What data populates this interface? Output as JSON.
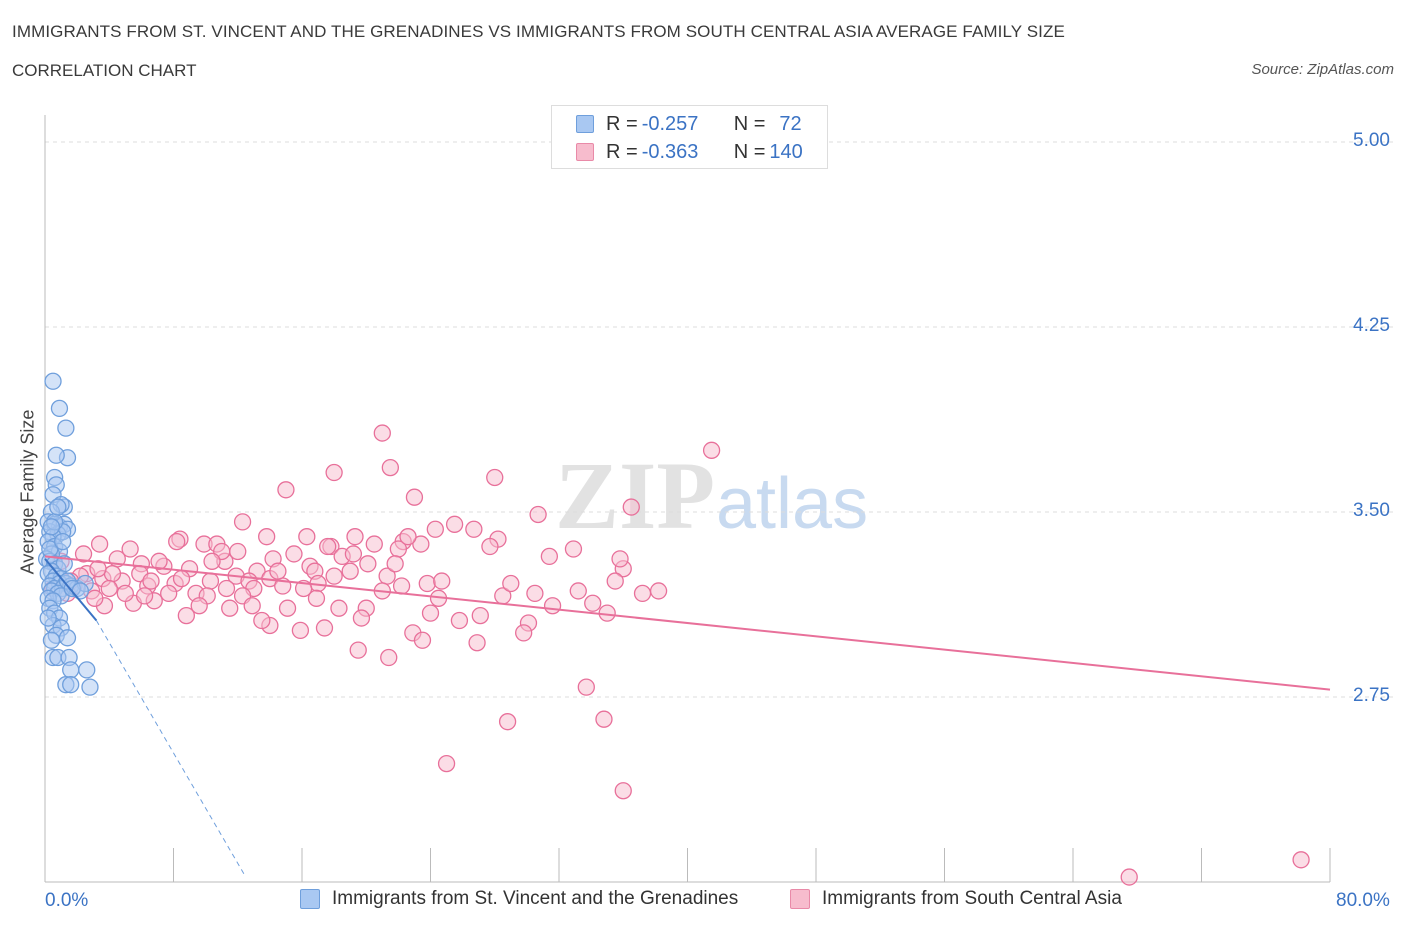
{
  "header": {
    "title": "IMMIGRANTS FROM ST. VINCENT AND THE GRENADINES VS IMMIGRANTS FROM SOUTH CENTRAL ASIA AVERAGE FAMILY SIZE",
    "subtitle": "CORRELATION CHART",
    "source": "Source: ZipAtlas.com"
  },
  "legend": {
    "rows": [
      {
        "r_label": "R = ",
        "r_value": "-0.257",
        "n_label": "N = ",
        "n_value": "72",
        "color": "#a9c8f2",
        "border": "#6f9fdc"
      },
      {
        "r_label": "R = ",
        "r_value": "-0.363",
        "n_label": "N = ",
        "n_value": "140",
        "color": "#f7bccd",
        "border": "#e98aa8"
      }
    ]
  },
  "watermark": {
    "zip": "ZIP",
    "atlas": "atlas"
  },
  "chart_data": {
    "type": "scatter",
    "title": "IMMIGRANTS FROM ST. VINCENT AND THE GRENADINES VS IMMIGRANTS FROM SOUTH CENTRAL ASIA AVERAGE FAMILY SIZE",
    "subtitle": "CORRELATION CHART",
    "ylabel": "Average Family Size",
    "xlabel": "",
    "xlim": [
      0,
      80
    ],
    "ylim": [
      2.0,
      5.15
    ],
    "x_tick_labels": [
      "0.0%",
      "80.0%"
    ],
    "y_ticks": [
      2.75,
      3.5,
      4.25,
      5.0
    ],
    "y_tick_labels": [
      "2.75",
      "3.50",
      "4.25",
      "5.00"
    ],
    "grid": true,
    "legend_placement": "bottom-center",
    "series": [
      {
        "name": "Immigrants from St. Vincent and the Grenadines",
        "color": "#6f9fdc",
        "fill": "#a9c8f2",
        "trend": {
          "x1": 0,
          "y1": 3.31,
          "x2": 3.2,
          "y2": 3.06,
          "dash_to_x": 12.5,
          "dash_to_y": 2.02
        },
        "points": [
          [
            0.5,
            4.03
          ],
          [
            0.9,
            3.92
          ],
          [
            1.3,
            3.84
          ],
          [
            1.4,
            3.72
          ],
          [
            0.7,
            3.73
          ],
          [
            0.6,
            3.64
          ],
          [
            0.7,
            3.61
          ],
          [
            0.5,
            3.57
          ],
          [
            1.2,
            3.52
          ],
          [
            1.0,
            3.53
          ],
          [
            0.4,
            3.5
          ],
          [
            0.2,
            3.46
          ],
          [
            0.6,
            3.45
          ],
          [
            0.9,
            3.44
          ],
          [
            1.2,
            3.45
          ],
          [
            1.4,
            3.43
          ],
          [
            0.3,
            3.42
          ],
          [
            0.8,
            3.41
          ],
          [
            1.1,
            3.42
          ],
          [
            0.5,
            3.4
          ],
          [
            0.2,
            3.38
          ],
          [
            0.6,
            3.36
          ],
          [
            0.9,
            3.34
          ],
          [
            0.4,
            3.33
          ],
          [
            0.1,
            3.31
          ],
          [
            0.3,
            3.3
          ],
          [
            0.6,
            3.29
          ],
          [
            0.8,
            3.27
          ],
          [
            1.2,
            3.29
          ],
          [
            0.4,
            3.26
          ],
          [
            0.2,
            3.25
          ],
          [
            0.7,
            3.24
          ],
          [
            1.0,
            3.23
          ],
          [
            0.5,
            3.22
          ],
          [
            0.9,
            3.21
          ],
          [
            1.3,
            3.21
          ],
          [
            0.3,
            3.2
          ],
          [
            0.6,
            3.19
          ],
          [
            1.1,
            3.19
          ],
          [
            1.6,
            3.2
          ],
          [
            2.0,
            3.19
          ],
          [
            2.5,
            3.21
          ],
          [
            0.4,
            3.18
          ],
          [
            0.8,
            3.17
          ],
          [
            1.0,
            3.16
          ],
          [
            0.2,
            3.15
          ],
          [
            0.5,
            3.14
          ],
          [
            1.4,
            3.22
          ],
          [
            0.3,
            3.11
          ],
          [
            0.6,
            3.09
          ],
          [
            0.9,
            3.07
          ],
          [
            0.5,
            3.04
          ],
          [
            0.2,
            3.07
          ],
          [
            1.0,
            3.03
          ],
          [
            0.7,
            3.0
          ],
          [
            0.4,
            2.98
          ],
          [
            1.4,
            2.99
          ],
          [
            0.5,
            2.91
          ],
          [
            0.8,
            2.91
          ],
          [
            1.5,
            2.91
          ],
          [
            1.6,
            2.86
          ],
          [
            2.6,
            2.86
          ],
          [
            1.3,
            2.8
          ],
          [
            1.6,
            2.8
          ],
          [
            2.8,
            2.79
          ],
          [
            0.3,
            3.35
          ],
          [
            0.6,
            3.46
          ],
          [
            1.1,
            3.38
          ],
          [
            0.8,
            3.52
          ],
          [
            0.4,
            3.44
          ],
          [
            1.7,
            3.19
          ],
          [
            2.2,
            3.18
          ]
        ]
      },
      {
        "name": "Immigrants from South Central Asia",
        "color": "#e8709a",
        "fill": "#f7bccd",
        "trend": {
          "x1": 0,
          "y1": 3.32,
          "x2": 80,
          "y2": 2.78
        },
        "points": [
          [
            21.0,
            3.82
          ],
          [
            21.5,
            3.68
          ],
          [
            18.0,
            3.66
          ],
          [
            28.0,
            3.64
          ],
          [
            41.5,
            3.75
          ],
          [
            15.0,
            3.59
          ],
          [
            23.0,
            3.56
          ],
          [
            36.5,
            3.52
          ],
          [
            30.7,
            3.49
          ],
          [
            25.5,
            3.45
          ],
          [
            12.3,
            3.46
          ],
          [
            24.3,
            3.43
          ],
          [
            19.3,
            3.4
          ],
          [
            8.4,
            3.39
          ],
          [
            13.8,
            3.4
          ],
          [
            16.3,
            3.4
          ],
          [
            28.2,
            3.39
          ],
          [
            22.3,
            3.38
          ],
          [
            9.9,
            3.37
          ],
          [
            10.7,
            3.37
          ],
          [
            3.4,
            3.37
          ],
          [
            8.2,
            3.38
          ],
          [
            23.4,
            3.37
          ],
          [
            17.8,
            3.36
          ],
          [
            22.0,
            3.35
          ],
          [
            5.3,
            3.35
          ],
          [
            12.0,
            3.34
          ],
          [
            15.5,
            3.33
          ],
          [
            14.2,
            3.31
          ],
          [
            6.0,
            3.29
          ],
          [
            20.1,
            3.29
          ],
          [
            11.2,
            3.3
          ],
          [
            18.5,
            3.32
          ],
          [
            4.5,
            3.31
          ],
          [
            16.5,
            3.28
          ],
          [
            7.4,
            3.28
          ],
          [
            13.2,
            3.26
          ],
          [
            36.0,
            3.27
          ],
          [
            9.0,
            3.27
          ],
          [
            2.6,
            3.25
          ],
          [
            5.9,
            3.25
          ],
          [
            16.8,
            3.26
          ],
          [
            19.0,
            3.26
          ],
          [
            11.9,
            3.24
          ],
          [
            21.3,
            3.24
          ],
          [
            14.0,
            3.23
          ],
          [
            12.7,
            3.22
          ],
          [
            3.6,
            3.23
          ],
          [
            4.8,
            3.22
          ],
          [
            10.3,
            3.22
          ],
          [
            8.1,
            3.21
          ],
          [
            23.8,
            3.21
          ],
          [
            35.5,
            3.22
          ],
          [
            17.0,
            3.21
          ],
          [
            6.4,
            3.2
          ],
          [
            1.8,
            3.2
          ],
          [
            22.2,
            3.2
          ],
          [
            13.0,
            3.19
          ],
          [
            2.9,
            3.18
          ],
          [
            7.7,
            3.17
          ],
          [
            21.0,
            3.18
          ],
          [
            9.4,
            3.17
          ],
          [
            33.2,
            3.18
          ],
          [
            38.2,
            3.18
          ],
          [
            1.4,
            3.17
          ],
          [
            10.1,
            3.16
          ],
          [
            12.3,
            3.16
          ],
          [
            28.5,
            3.16
          ],
          [
            24.5,
            3.15
          ],
          [
            16.9,
            3.15
          ],
          [
            6.8,
            3.14
          ],
          [
            34.1,
            3.13
          ],
          [
            31.6,
            3.12
          ],
          [
            5.5,
            3.13
          ],
          [
            3.7,
            3.12
          ],
          [
            11.5,
            3.11
          ],
          [
            18.3,
            3.11
          ],
          [
            20.0,
            3.11
          ],
          [
            35.0,
            3.09
          ],
          [
            24.0,
            3.09
          ],
          [
            27.1,
            3.08
          ],
          [
            8.8,
            3.08
          ],
          [
            19.7,
            3.07
          ],
          [
            25.8,
            3.06
          ],
          [
            30.1,
            3.05
          ],
          [
            14.0,
            3.04
          ],
          [
            17.4,
            3.03
          ],
          [
            15.9,
            3.02
          ],
          [
            29.8,
            3.01
          ],
          [
            22.9,
            3.01
          ],
          [
            23.5,
            2.98
          ],
          [
            26.9,
            2.97
          ],
          [
            19.5,
            2.94
          ],
          [
            21.4,
            2.91
          ],
          [
            33.7,
            2.79
          ],
          [
            34.8,
            2.66
          ],
          [
            28.8,
            2.65
          ],
          [
            25.0,
            2.48
          ],
          [
            36.0,
            2.37
          ],
          [
            78.2,
            2.09
          ],
          [
            67.5,
            2.02
          ],
          [
            31.4,
            3.32
          ],
          [
            1.0,
            3.3
          ],
          [
            0.5,
            3.19
          ],
          [
            2.2,
            3.24
          ],
          [
            14.8,
            3.2
          ],
          [
            4.2,
            3.25
          ],
          [
            7.1,
            3.3
          ],
          [
            11.0,
            3.34
          ],
          [
            20.5,
            3.37
          ],
          [
            26.7,
            3.43
          ],
          [
            32.9,
            3.35
          ],
          [
            21.8,
            3.29
          ],
          [
            3.1,
            3.15
          ],
          [
            5.0,
            3.17
          ],
          [
            1.6,
            3.22
          ],
          [
            9.6,
            3.12
          ],
          [
            12.9,
            3.12
          ],
          [
            18.0,
            3.24
          ],
          [
            15.1,
            3.11
          ],
          [
            24.7,
            3.22
          ],
          [
            29.0,
            3.21
          ],
          [
            37.2,
            3.17
          ],
          [
            2.4,
            3.33
          ],
          [
            6.6,
            3.22
          ],
          [
            13.5,
            3.06
          ],
          [
            16.1,
            3.19
          ],
          [
            19.2,
            3.33
          ],
          [
            22.6,
            3.4
          ],
          [
            27.7,
            3.36
          ],
          [
            10.4,
            3.3
          ],
          [
            8.5,
            3.23
          ],
          [
            4.0,
            3.19
          ],
          [
            3.3,
            3.27
          ],
          [
            11.3,
            3.19
          ],
          [
            14.5,
            3.26
          ],
          [
            6.2,
            3.16
          ],
          [
            30.5,
            3.17
          ],
          [
            35.8,
            3.31
          ],
          [
            17.6,
            3.36
          ]
        ]
      }
    ]
  },
  "bottom_legend": [
    {
      "label": "Immigrants from St. Vincent and the Grenadines",
      "color": "#a9c8f2",
      "border": "#6f9fdc"
    },
    {
      "label": "Immigrants from South Central Asia",
      "color": "#f7bccd",
      "border": "#e98aa8"
    }
  ]
}
